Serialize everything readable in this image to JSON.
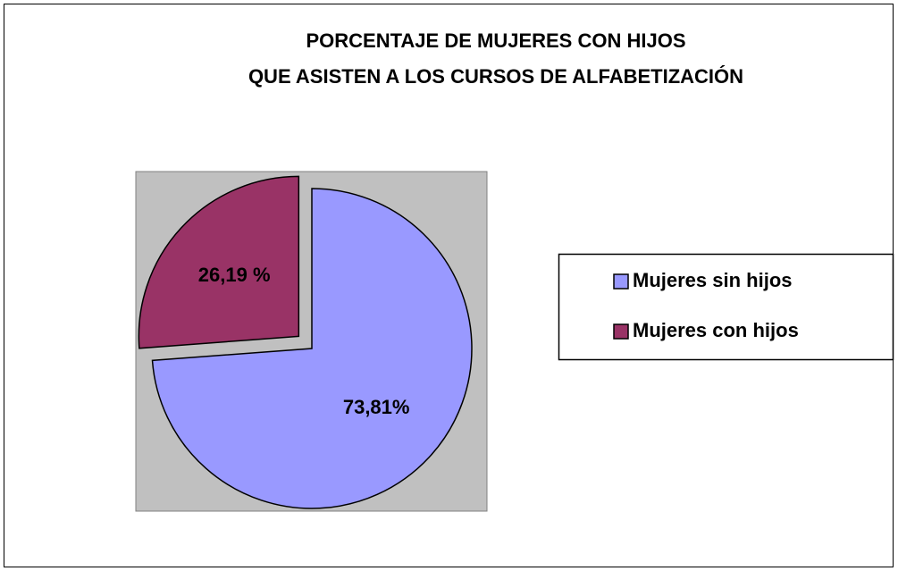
{
  "chart_data": {
    "type": "pie",
    "title": [
      "PORCENTAJE DE MUJERES CON HIJOS",
      "QUE ASISTEN A LOS CURSOS DE ALFABETIZACIÓN"
    ],
    "categories": [
      "Mujeres sin hijos",
      "Mujeres con hijos"
    ],
    "values": [
      73.81,
      26.19
    ],
    "value_labels": [
      "73,81%",
      "26,19 %"
    ],
    "colors": [
      "#9999ff",
      "#993366"
    ],
    "exploded": [
      false,
      true
    ],
    "legend": "right"
  }
}
